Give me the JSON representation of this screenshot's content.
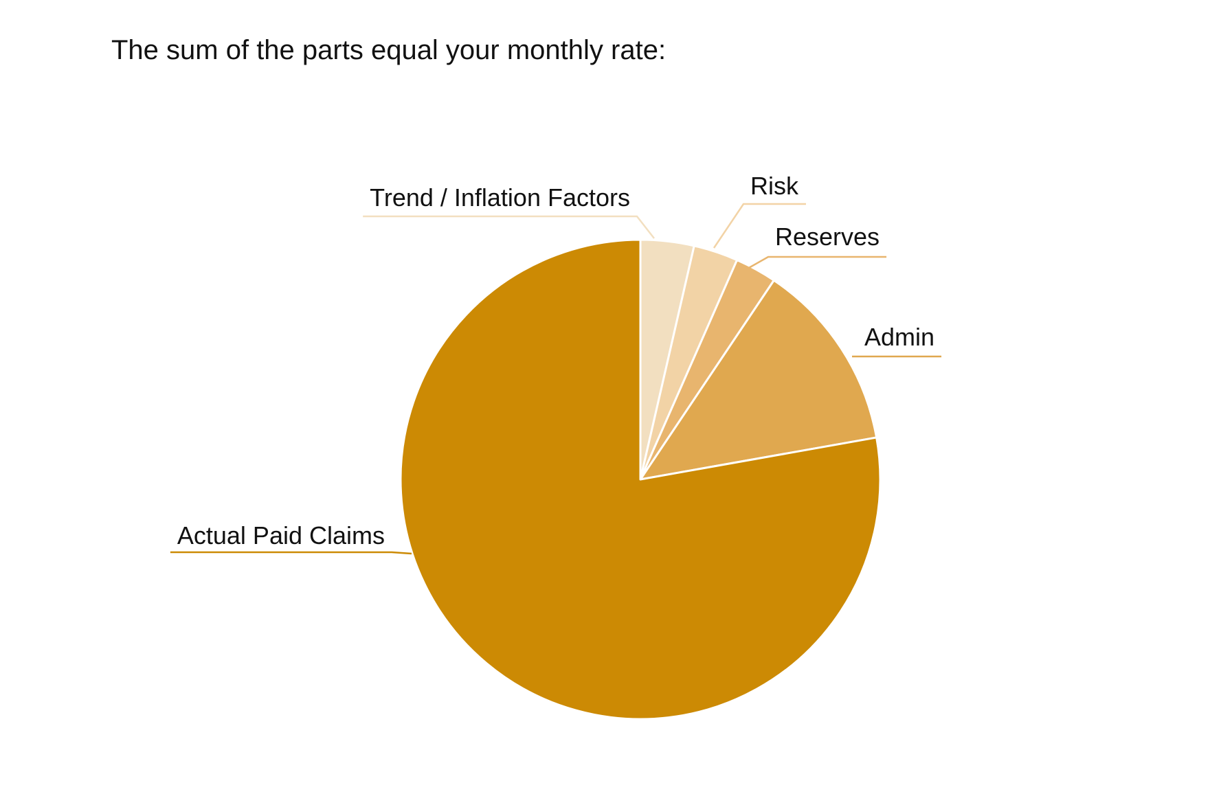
{
  "chart_data": {
    "type": "pie",
    "title": "The sum of the parts equal your monthly rate:",
    "categories": [
      "Trend / Inflation Factors",
      "Risk",
      "Reserves",
      "Admin",
      "Actual Paid Claims"
    ],
    "values": [
      3.6,
      3,
      2.8,
      12.8,
      77.8
    ],
    "colors": [
      "#f2dfc0",
      "#f2d3a6",
      "#e8b56e",
      "#e0a84f",
      "#cc8a04"
    ]
  }
}
